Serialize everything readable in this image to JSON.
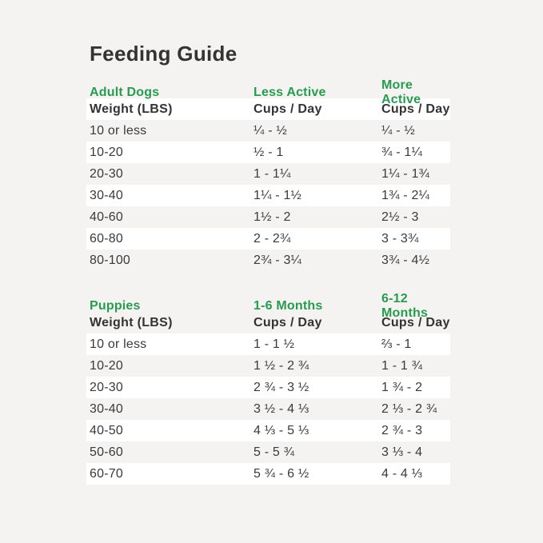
{
  "page_title": "Feeding Guide",
  "colors": {
    "background": "#f4f3f1",
    "row_white": "#ffffff",
    "accent_green": "#289b51",
    "text_dark": "#333333",
    "text_body": "#3a3a3a"
  },
  "tables": [
    {
      "section": "Adult Dogs",
      "section_columns": [
        "Adult Dogs",
        "Less Active",
        "More Active"
      ],
      "column_headers": [
        "Weight (LBS)",
        "Cups / Day",
        "Cups / Day"
      ],
      "rows": [
        [
          "10 or less",
          "¼ - ½",
          "¼ - ½"
        ],
        [
          "10-20",
          "½ - 1",
          "¾ - 1¼"
        ],
        [
          "20-30",
          "1 - 1¼",
          "1¼ - 1¾"
        ],
        [
          "30-40",
          "1¼ - 1½",
          "1¾ - 2¼"
        ],
        [
          "40-60",
          "1½ - 2",
          "2½ - 3"
        ],
        [
          "60-80",
          "2 - 2¾",
          "3 - 3¾"
        ],
        [
          "80-100",
          "2¾ - 3¼",
          "3¾ - 4½"
        ]
      ]
    },
    {
      "section": "Puppies",
      "section_columns": [
        "Puppies",
        "1-6 Months",
        "6-12 Months"
      ],
      "column_headers": [
        "Weight (LBS)",
        "Cups / Day",
        "Cups / Day"
      ],
      "rows": [
        [
          "10 or less",
          "1 - 1 ½",
          "⅔ - 1"
        ],
        [
          "10-20",
          "1 ½ - 2 ¾",
          "1 - 1 ¾"
        ],
        [
          "20-30",
          "2 ¾ - 3 ½",
          "1 ¾ - 2"
        ],
        [
          "30-40",
          "3 ½ - 4 ⅓",
          "2 ⅓ - 2 ¾"
        ],
        [
          "40-50",
          "4 ⅓ - 5 ⅓",
          "2 ¾ - 3"
        ],
        [
          "50-60",
          "5 - 5 ¾",
          "3 ⅓ - 4"
        ],
        [
          "60-70",
          "5 ¾ - 6 ½",
          "4 - 4 ⅓"
        ]
      ]
    }
  ],
  "chart_data": [
    {
      "type": "table",
      "title": "Feeding Guide - Adult Dogs",
      "columns": [
        "Weight (LBS)",
        "Less Active Cups / Day",
        "More Active Cups / Day"
      ],
      "rows": [
        [
          "10 or less",
          "¼ - ½",
          "¼ - ½"
        ],
        [
          "10-20",
          "½ - 1",
          "¾ - 1¼"
        ],
        [
          "20-30",
          "1 - 1¼",
          "1¼ - 1¾"
        ],
        [
          "30-40",
          "1¼ - 1½",
          "1¾ - 2¼"
        ],
        [
          "40-60",
          "1½ - 2",
          "2½ - 3"
        ],
        [
          "60-80",
          "2 - 2¾",
          "3 - 3¾"
        ],
        [
          "80-100",
          "2¾ - 3¼",
          "3¾ - 4½"
        ]
      ]
    },
    {
      "type": "table",
      "title": "Feeding Guide - Puppies",
      "columns": [
        "Weight (LBS)",
        "1-6 Months Cups / Day",
        "6-12 Months Cups / Day"
      ],
      "rows": [
        [
          "10 or less",
          "1 - 1 ½",
          "⅔ - 1"
        ],
        [
          "10-20",
          "1 ½ - 2 ¾",
          "1 - 1 ¾"
        ],
        [
          "20-30",
          "2 ¾ - 3 ½",
          "1 ¾ - 2"
        ],
        [
          "30-40",
          "3 ½ - 4 ⅓",
          "2 ⅓ - 2 ¾"
        ],
        [
          "40-50",
          "4 ⅓ - 5 ⅓",
          "2 ¾ - 3"
        ],
        [
          "50-60",
          "5 - 5 ¾",
          "3 ⅓ - 4"
        ],
        [
          "60-70",
          "5 ¾ - 6 ½",
          "4 - 4 ⅓"
        ]
      ]
    }
  ]
}
